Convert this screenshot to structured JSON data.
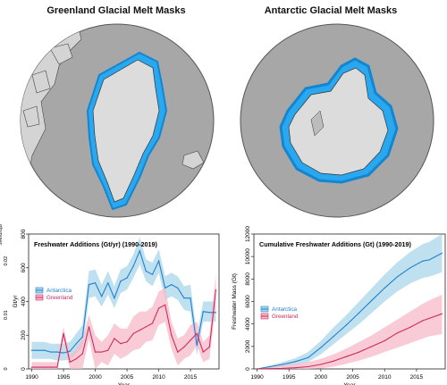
{
  "maps": [
    {
      "title": "Greenland Glacial Melt Masks"
    },
    {
      "title": "Antarctic Glacial Melt Masks"
    }
  ],
  "colors": {
    "antarctica": "#1f7fd0",
    "antarctica_band": "#a9d7ea",
    "greenland": "#d02a5c",
    "greenland_band": "#f5b9c8",
    "land": "#d4d4d4",
    "ocean": "#a7a7a7",
    "mask": "#29a8f0"
  },
  "chart_data": [
    {
      "type": "line",
      "title": "Freshwater Additions (Gt/yr) (1990-2019)",
      "xlabel": "Year",
      "ylabel": "Gt/yr",
      "ylabel_secondary": "Sverdrups",
      "xlim": [
        1989.5,
        2019.5
      ],
      "ylim": [
        0,
        800
      ],
      "xticks": [
        1990,
        1995,
        2000,
        2005,
        2010,
        2015
      ],
      "yticks": [
        0,
        200,
        400,
        600,
        800
      ],
      "secondary_yticks": [
        {
          "label": "0",
          "value": 0
        },
        {
          "label": "0.01",
          "value": 320
        },
        {
          "label": "0.02",
          "value": 640
        }
      ],
      "legend": {
        "position": "middle-left",
        "entries": [
          "Antarctica",
          "Greenland"
        ]
      },
      "series": [
        {
          "name": "Antarctica",
          "x": [
            1990,
            1991,
            1992,
            1993,
            1994,
            1995,
            1996,
            1997,
            1998,
            1999,
            2000,
            2001,
            2002,
            2003,
            2004,
            2005,
            2006,
            2007,
            2008,
            2009,
            2010,
            2011,
            2012,
            2013,
            2014,
            2015,
            2016,
            2017,
            2018,
            2019
          ],
          "values": [
            110,
            110,
            110,
            100,
            100,
            95,
            105,
            150,
            190,
            500,
            510,
            430,
            510,
            420,
            520,
            540,
            610,
            700,
            580,
            560,
            640,
            480,
            500,
            480,
            420,
            420,
            140,
            340,
            335,
            335
          ],
          "lower": [
            60,
            60,
            60,
            60,
            50,
            50,
            55,
            90,
            130,
            420,
            430,
            370,
            440,
            360,
            450,
            470,
            540,
            620,
            520,
            490,
            570,
            410,
            430,
            410,
            350,
            340,
            80,
            280,
            280,
            280
          ],
          "upper": [
            160,
            160,
            160,
            150,
            150,
            150,
            160,
            210,
            260,
            580,
            590,
            500,
            580,
            490,
            590,
            610,
            680,
            780,
            650,
            630,
            710,
            550,
            570,
            550,
            490,
            500,
            200,
            400,
            400,
            400
          ]
        },
        {
          "name": "Greenland",
          "x": [
            1990,
            1991,
            1992,
            1993,
            1994,
            1995,
            1996,
            1997,
            1998,
            1999,
            2000,
            2001,
            2002,
            2003,
            2004,
            2005,
            2006,
            2007,
            2008,
            2009,
            2010,
            2011,
            2012,
            2013,
            2014,
            2015,
            2016,
            2017,
            2018,
            2019
          ],
          "values": [
            10,
            10,
            10,
            10,
            10,
            210,
            40,
            60,
            90,
            250,
            100,
            100,
            110,
            180,
            150,
            160,
            210,
            230,
            250,
            270,
            360,
            380,
            200,
            100,
            130,
            170,
            210,
            100,
            130,
            470
          ],
          "lower": [
            0,
            0,
            0,
            0,
            0,
            170,
            0,
            0,
            0,
            180,
            0,
            40,
            20,
            90,
            60,
            80,
            110,
            120,
            160,
            170,
            260,
            280,
            120,
            20,
            60,
            80,
            140,
            40,
            60,
            380
          ],
          "upper": [
            40,
            40,
            40,
            40,
            40,
            250,
            80,
            120,
            180,
            320,
            200,
            160,
            200,
            270,
            240,
            240,
            310,
            340,
            340,
            370,
            460,
            480,
            280,
            180,
            200,
            260,
            280,
            160,
            200,
            560
          ]
        }
      ]
    },
    {
      "type": "line",
      "title": "Cumulative Freshwater Additions (Gt) (1990-2019)",
      "xlabel": "Year",
      "ylabel": "Freshwater Mass (Gt)",
      "xlim": [
        1989.5,
        2019.5
      ],
      "ylim": [
        0,
        12000
      ],
      "xticks": [
        1990,
        1995,
        2000,
        2005,
        2010,
        2015
      ],
      "yticks": [
        0,
        2000,
        4000,
        6000,
        8000,
        10000,
        12000
      ],
      "legend": {
        "position": "middle-left",
        "entries": [
          "Antarctica",
          "Greenland"
        ]
      },
      "series": [
        {
          "name": "Antarctica",
          "x": [
            1990,
            1992,
            1994,
            1996,
            1998,
            2000,
            2002,
            2004,
            2006,
            2008,
            2010,
            2012,
            2014,
            2016,
            2017,
            2019
          ],
          "values": [
            0,
            200,
            400,
            650,
            1000,
            1900,
            2900,
            3900,
            5000,
            6100,
            7200,
            8200,
            9000,
            9600,
            9700,
            10300
          ],
          "lower": [
            0,
            100,
            200,
            350,
            600,
            1300,
            2200,
            3100,
            4000,
            5000,
            6000,
            6900,
            7600,
            8100,
            8200,
            8600
          ],
          "upper": [
            0,
            300,
            600,
            950,
            1500,
            2500,
            3700,
            4800,
            6000,
            7200,
            8400,
            9500,
            10400,
            11100,
            11300,
            12000
          ]
        },
        {
          "name": "Greenland",
          "x": [
            1990,
            1992,
            1994,
            1996,
            1998,
            2000,
            2002,
            2004,
            2006,
            2008,
            2010,
            2012,
            2014,
            2016,
            2017,
            2019
          ],
          "values": [
            0,
            20,
            50,
            100,
            200,
            400,
            700,
            1100,
            1500,
            2000,
            2500,
            3200,
            3700,
            4300,
            4500,
            4900
          ],
          "lower": [
            0,
            0,
            0,
            0,
            0,
            50,
            200,
            450,
            750,
            1100,
            1500,
            1900,
            2300,
            2700,
            2900,
            3100
          ],
          "upper": [
            0,
            150,
            300,
            450,
            600,
            900,
            1300,
            1800,
            2400,
            3000,
            3700,
            4400,
            5100,
            5800,
            6100,
            6600
          ]
        }
      ]
    }
  ]
}
